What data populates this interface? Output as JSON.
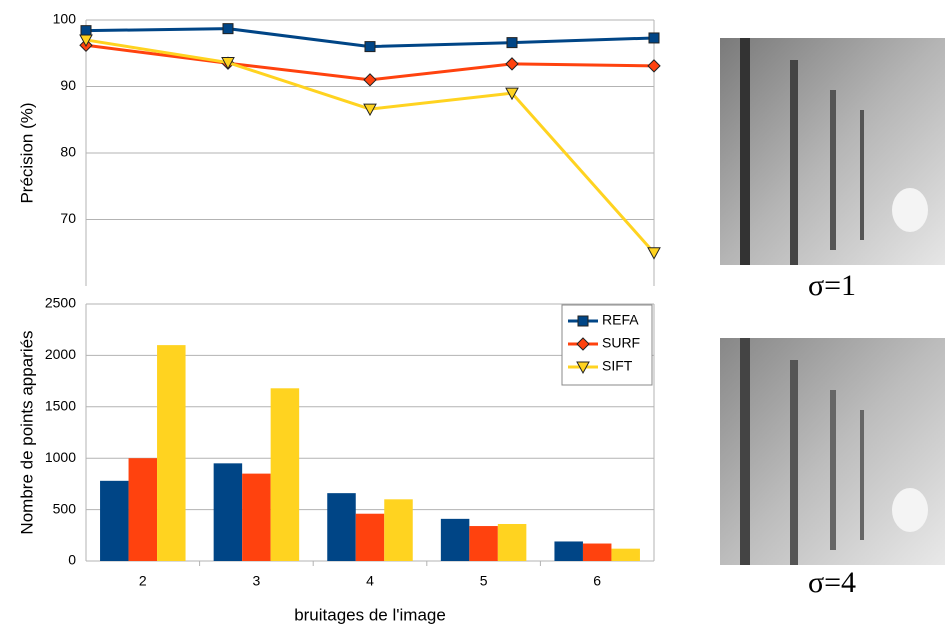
{
  "chart_data": [
    {
      "type": "line",
      "ylabel": "Précision (%)",
      "x": [
        2,
        3,
        4,
        5,
        6
      ],
      "xlim": [
        2,
        6
      ],
      "ylim": [
        60,
        100
      ],
      "yticks": [
        70,
        80,
        90,
        100
      ],
      "grid": true,
      "series": [
        {
          "color": "#004586",
          "marker": "square",
          "values": [
            98.4,
            98.7,
            96,
            96.6,
            97.3
          ]
        },
        {
          "color": "#ff420e",
          "marker": "diamond",
          "values": [
            96.2,
            93.5,
            91,
            93.4,
            93.1
          ]
        },
        {
          "color": "#ffd320",
          "marker": "triangle-down",
          "values": [
            97,
            93.6,
            86.6,
            89,
            65
          ]
        }
      ]
    },
    {
      "type": "bar",
      "ylabel": "Nombre de points appariés",
      "xlabel": "bruitages de l'image",
      "categories": [
        "2",
        "3",
        "4",
        "5",
        "6"
      ],
      "ylim": [
        0,
        2500
      ],
      "yticks": [
        0,
        500,
        1000,
        1500,
        2000,
        2500
      ],
      "grid": true,
      "legend": "top-right",
      "series": [
        {
          "name": "REFA",
          "color": "#004586",
          "values": [
            780,
            950,
            660,
            410,
            190
          ]
        },
        {
          "name": "SURF",
          "color": "#ff420e",
          "values": [
            1000,
            850,
            460,
            340,
            170
          ]
        },
        {
          "name": "SIFT",
          "color": "#ffd320",
          "values": [
            2100,
            1680,
            600,
            360,
            120
          ]
        }
      ]
    }
  ],
  "images": [
    {
      "caption": "σ=1"
    },
    {
      "caption": "σ=4"
    }
  ]
}
